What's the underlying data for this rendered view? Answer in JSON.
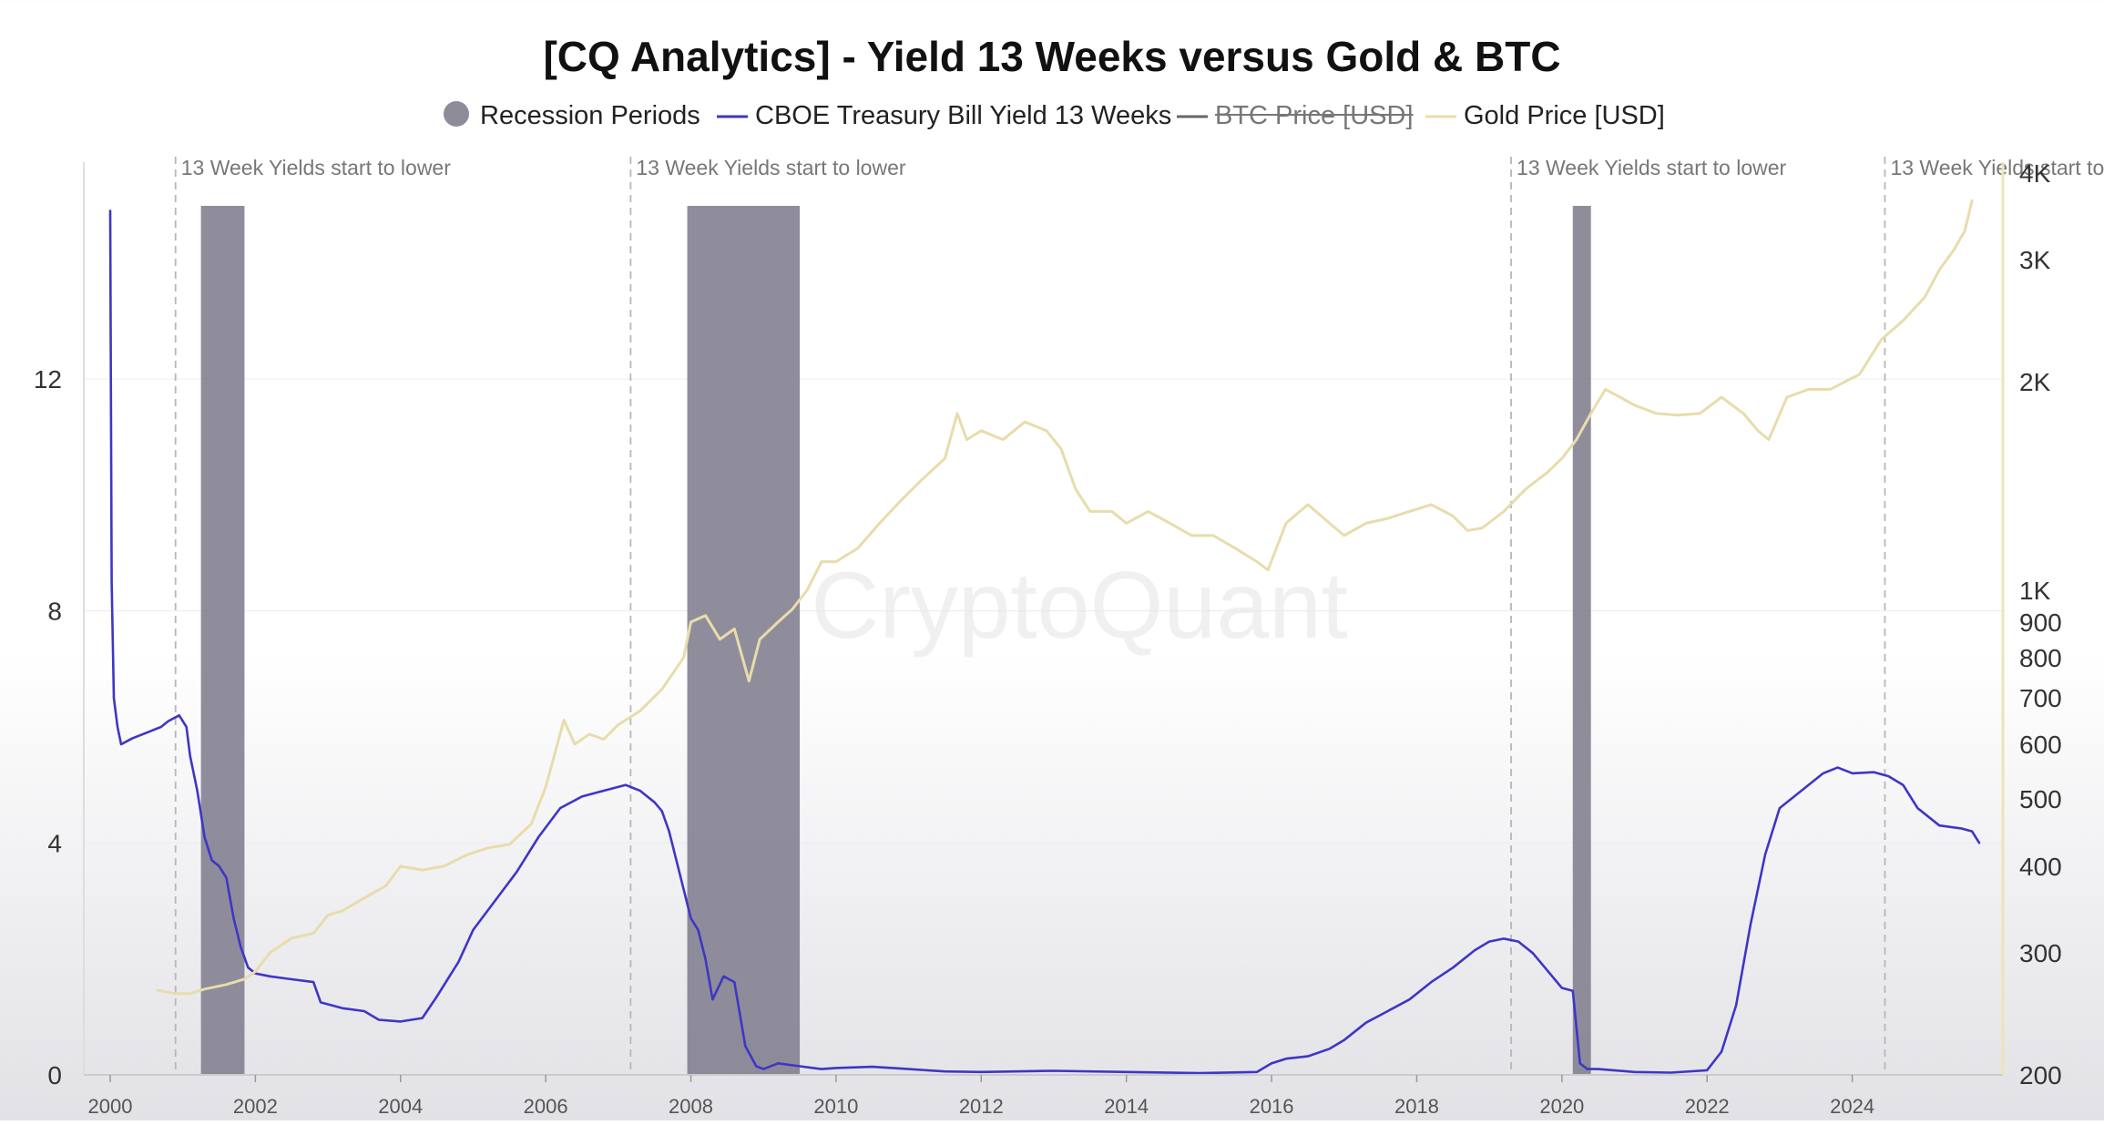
{
  "chart_data": {
    "type": "line",
    "title": "[CQ Analytics] - Yield 13 Weeks versus Gold & BTC",
    "watermark": "CryptoQuant",
    "legend": {
      "placement": "top-center",
      "items": [
        {
          "name": "Recession Periods",
          "marker": "dot",
          "color": "#8e8c98",
          "struck": false
        },
        {
          "name": "CBOE Treasury Bill Yield 13 Weeks",
          "marker": "line",
          "color": "#3f36c4",
          "struck": false
        },
        {
          "name": "BTC Price [USD]",
          "marker": "line",
          "color": "#666666",
          "struck": true
        },
        {
          "name": "Gold Price [USD]",
          "marker": "line",
          "color": "#e8dcac",
          "struck": false
        }
      ]
    },
    "x_axis": {
      "range": [
        2000,
        2025.9
      ],
      "ticks": [
        "2000",
        "2002",
        "2004",
        "2006",
        "2008",
        "2010",
        "2012",
        "2014",
        "2016",
        "2018",
        "2020",
        "2022",
        "2024"
      ]
    },
    "y_left": {
      "range": [
        0,
        15
      ],
      "ticks": [
        0,
        4,
        8,
        12
      ],
      "tick_labels": [
        "0",
        "4",
        "8",
        "12"
      ]
    },
    "y_right": {
      "scale": "log",
      "range": [
        200,
        4000
      ],
      "ticks": [
        200,
        300,
        400,
        500,
        600,
        700,
        800,
        900,
        1000,
        2000,
        3000,
        4000
      ],
      "tick_labels": [
        "200",
        "300",
        "400",
        "500",
        "600",
        "700",
        "800",
        "900",
        "1K",
        "2K",
        "3K",
        "4K"
      ]
    },
    "grid": true,
    "recessions": [
      [
        2001.25,
        2001.85
      ],
      [
        2007.95,
        2009.5
      ],
      [
        2020.15,
        2020.4
      ]
    ],
    "annotations": [
      {
        "x": 2000.9,
        "text": "13 Week Yields start to lower"
      },
      {
        "x": 2007.17,
        "text": "13 Week Yields start to lower"
      },
      {
        "x": 2019.3,
        "text": "13 Week Yields start to lower"
      },
      {
        "x": 2024.45,
        "text": "13 Week Yields start to"
      }
    ],
    "series": [
      {
        "name": "CBOE Treasury Bill Yield 13 Weeks",
        "axis": "left",
        "color": "#3f36c4",
        "x": [
          2000.0,
          2000.02,
          2000.05,
          2000.1,
          2000.15,
          2000.3,
          2000.5,
          2000.7,
          2000.8,
          2000.95,
          2001.05,
          2001.1,
          2001.2,
          2001.3,
          2001.4,
          2001.5,
          2001.6,
          2001.7,
          2001.8,
          2001.9,
          2002.0,
          2002.2,
          2002.5,
          2002.8,
          2002.9,
          2003.2,
          2003.5,
          2003.7,
          2004.0,
          2004.3,
          2004.5,
          2004.8,
          2005.0,
          2005.3,
          2005.6,
          2005.9,
          2006.2,
          2006.5,
          2006.8,
          2007.1,
          2007.3,
          2007.5,
          2007.6,
          2007.7,
          2007.8,
          2007.9,
          2008.0,
          2008.1,
          2008.2,
          2008.3,
          2008.45,
          2008.6,
          2008.75,
          2008.9,
          2009.0,
          2009.2,
          2009.5,
          2009.8,
          2010.0,
          2010.5,
          2011.0,
          2011.5,
          2012.0,
          2013.0,
          2014.0,
          2015.0,
          2015.8,
          2016.0,
          2016.2,
          2016.5,
          2016.8,
          2017.0,
          2017.3,
          2017.6,
          2017.9,
          2018.2,
          2018.5,
          2018.8,
          2019.0,
          2019.2,
          2019.4,
          2019.6,
          2019.8,
          2020.0,
          2020.15,
          2020.25,
          2020.35,
          2020.5,
          2021.0,
          2021.5,
          2022.0,
          2022.2,
          2022.4,
          2022.6,
          2022.8,
          2023.0,
          2023.3,
          2023.6,
          2023.8,
          2024.0,
          2024.3,
          2024.5,
          2024.7,
          2024.9,
          2025.2,
          2025.5,
          2025.65,
          2025.75
        ],
        "values": [
          14.9,
          8.5,
          6.5,
          6.0,
          5.7,
          5.8,
          5.9,
          6.0,
          6.1,
          6.2,
          6.0,
          5.5,
          4.9,
          4.1,
          3.7,
          3.6,
          3.4,
          2.7,
          2.2,
          1.85,
          1.75,
          1.7,
          1.65,
          1.6,
          1.25,
          1.15,
          1.1,
          0.95,
          0.92,
          0.98,
          1.35,
          1.95,
          2.5,
          3.0,
          3.5,
          4.1,
          4.6,
          4.8,
          4.9,
          5.0,
          4.9,
          4.7,
          4.55,
          4.2,
          3.7,
          3.2,
          2.7,
          2.5,
          2.0,
          1.3,
          1.7,
          1.6,
          0.5,
          0.15,
          0.1,
          0.2,
          0.15,
          0.1,
          0.12,
          0.14,
          0.1,
          0.06,
          0.05,
          0.07,
          0.05,
          0.03,
          0.05,
          0.2,
          0.28,
          0.32,
          0.45,
          0.6,
          0.9,
          1.1,
          1.3,
          1.6,
          1.85,
          2.15,
          2.3,
          2.35,
          2.3,
          2.1,
          1.8,
          1.5,
          1.45,
          0.2,
          0.1,
          0.1,
          0.05,
          0.04,
          0.08,
          0.4,
          1.2,
          2.6,
          3.8,
          4.6,
          4.9,
          5.2,
          5.3,
          5.2,
          5.22,
          5.15,
          5.0,
          4.6,
          4.3,
          4.25,
          4.2,
          4.0
        ]
      },
      {
        "name": "Gold Price [USD]",
        "axis": "right",
        "color": "#e8dcac",
        "x": [
          2000.65,
          2000.9,
          2001.1,
          2001.3,
          2001.6,
          2001.85,
          2002.0,
          2002.2,
          2002.5,
          2002.8,
          2003.0,
          2003.2,
          2003.5,
          2003.8,
          2004.0,
          2004.3,
          2004.6,
          2004.9,
          2005.2,
          2005.5,
          2005.8,
          2006.0,
          2006.25,
          2006.4,
          2006.6,
          2006.8,
          2007.0,
          2007.3,
          2007.6,
          2007.9,
          2008.0,
          2008.2,
          2008.4,
          2008.6,
          2008.8,
          2008.95,
          2009.2,
          2009.4,
          2009.6,
          2009.8,
          2010.0,
          2010.3,
          2010.6,
          2010.9,
          2011.2,
          2011.5,
          2011.67,
          2011.8,
          2012.0,
          2012.3,
          2012.6,
          2012.9,
          2013.1,
          2013.3,
          2013.5,
          2013.8,
          2014.0,
          2014.3,
          2014.6,
          2014.9,
          2015.2,
          2015.5,
          2015.8,
          2015.95,
          2016.2,
          2016.5,
          2016.8,
          2017.0,
          2017.3,
          2017.6,
          2017.9,
          2018.2,
          2018.5,
          2018.7,
          2018.9,
          2019.2,
          2019.5,
          2019.8,
          2020.0,
          2020.2,
          2020.4,
          2020.6,
          2020.8,
          2021.0,
          2021.3,
          2021.6,
          2021.9,
          2022.2,
          2022.5,
          2022.7,
          2022.85,
          2023.1,
          2023.4,
          2023.7,
          2023.9,
          2024.1,
          2024.4,
          2024.7,
          2025.0,
          2025.2,
          2025.4,
          2025.55,
          2025.65
        ],
        "values": [
          265,
          262,
          262,
          266,
          270,
          275,
          282,
          300,
          315,
          320,
          340,
          345,
          360,
          375,
          400,
          395,
          400,
          415,
          425,
          430,
          460,
          520,
          650,
          600,
          620,
          610,
          640,
          670,
          720,
          800,
          900,
          920,
          850,
          880,
          740,
          850,
          900,
          940,
          1000,
          1100,
          1100,
          1150,
          1250,
          1350,
          1450,
          1550,
          1800,
          1650,
          1700,
          1650,
          1750,
          1700,
          1600,
          1400,
          1300,
          1300,
          1250,
          1300,
          1250,
          1200,
          1200,
          1150,
          1100,
          1070,
          1250,
          1330,
          1250,
          1200,
          1250,
          1270,
          1300,
          1330,
          1280,
          1220,
          1230,
          1300,
          1400,
          1480,
          1550,
          1650,
          1800,
          1950,
          1900,
          1850,
          1800,
          1790,
          1800,
          1900,
          1800,
          1700,
          1650,
          1900,
          1950,
          1950,
          2000,
          2050,
          2300,
          2450,
          2650,
          2900,
          3100,
          3300,
          3650
        ]
      }
    ]
  }
}
